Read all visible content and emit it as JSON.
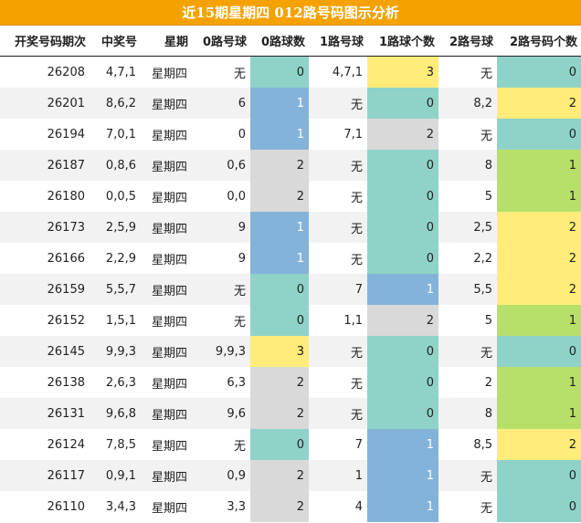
{
  "title": "近15期星期四 012路号码图示分析",
  "headers": [
    "开奖号码期次",
    "中奖号",
    "星期",
    "0路号球",
    "0路球数",
    "1路号球",
    "1路球个数",
    "2路号球",
    "2路号码个数"
  ],
  "rows": [
    {
      "period": "26208",
      "number": "4,7,1",
      "weekday": "星期四",
      "r0_balls": "无",
      "r0_count": "0",
      "r1_balls": "4,7,1",
      "r1_count": "3",
      "r2_balls": "无",
      "r2_count": "0"
    },
    {
      "period": "26201",
      "number": "8,6,2",
      "weekday": "星期四",
      "r0_balls": "6",
      "r0_count": "1",
      "r1_balls": "无",
      "r1_count": "0",
      "r2_balls": "8,2",
      "r2_count": "2"
    },
    {
      "period": "26194",
      "number": "7,0,1",
      "weekday": "星期四",
      "r0_balls": "0",
      "r0_count": "1",
      "r1_balls": "7,1",
      "r1_count": "2",
      "r2_balls": "无",
      "r2_count": "0"
    },
    {
      "period": "26187",
      "number": "0,8,6",
      "weekday": "星期四",
      "r0_balls": "0,6",
      "r0_count": "2",
      "r1_balls": "无",
      "r1_count": "0",
      "r2_balls": "8",
      "r2_count": "1"
    },
    {
      "period": "26180",
      "number": "0,0,5",
      "weekday": "星期四",
      "r0_balls": "0,0",
      "r0_count": "2",
      "r1_balls": "无",
      "r1_count": "0",
      "r2_balls": "5",
      "r2_count": "1"
    },
    {
      "period": "26173",
      "number": "2,5,9",
      "weekday": "星期四",
      "r0_balls": "9",
      "r0_count": "1",
      "r1_balls": "无",
      "r1_count": "0",
      "r2_balls": "2,5",
      "r2_count": "2"
    },
    {
      "period": "26166",
      "number": "2,2,9",
      "weekday": "星期四",
      "r0_balls": "9",
      "r0_count": "1",
      "r1_balls": "无",
      "r1_count": "0",
      "r2_balls": "2,2",
      "r2_count": "2"
    },
    {
      "period": "26159",
      "number": "5,5,7",
      "weekday": "星期四",
      "r0_balls": "无",
      "r0_count": "0",
      "r1_balls": "7",
      "r1_count": "1",
      "r2_balls": "5,5",
      "r2_count": "2"
    },
    {
      "period": "26152",
      "number": "1,5,1",
      "weekday": "星期四",
      "r0_balls": "无",
      "r0_count": "0",
      "r1_balls": "1,1",
      "r1_count": "2",
      "r2_balls": "5",
      "r2_count": "1"
    },
    {
      "period": "26145",
      "number": "9,9,3",
      "weekday": "星期四",
      "r0_balls": "9,9,3",
      "r0_count": "3",
      "r1_balls": "无",
      "r1_count": "0",
      "r2_balls": "无",
      "r2_count": "0"
    },
    {
      "period": "26138",
      "number": "2,6,3",
      "weekday": "星期四",
      "r0_balls": "6,3",
      "r0_count": "2",
      "r1_balls": "无",
      "r1_count": "0",
      "r2_balls": "2",
      "r2_count": "1"
    },
    {
      "period": "26131",
      "number": "9,6,8",
      "weekday": "星期四",
      "r0_balls": "9,6",
      "r0_count": "2",
      "r1_balls": "无",
      "r1_count": "0",
      "r2_balls": "8",
      "r2_count": "1"
    },
    {
      "period": "26124",
      "number": "7,8,5",
      "weekday": "星期四",
      "r0_balls": "无",
      "r0_count": "0",
      "r1_balls": "7",
      "r1_count": "1",
      "r2_balls": "8,5",
      "r2_count": "2"
    },
    {
      "period": "26117",
      "number": "0,9,1",
      "weekday": "星期四",
      "r0_balls": "0,9",
      "r0_count": "2",
      "r1_balls": "1",
      "r1_count": "1",
      "r2_balls": "无",
      "r2_count": "0"
    },
    {
      "period": "26110",
      "number": "3,4,3",
      "weekday": "星期四",
      "r0_balls": "3,3",
      "r0_count": "2",
      "r1_balls": "4",
      "r1_count": "1",
      "r2_balls": "无",
      "r2_count": "0"
    }
  ]
}
